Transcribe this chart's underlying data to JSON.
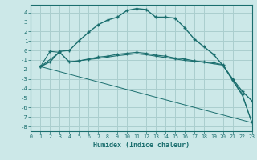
{
  "xlabel": "Humidex (Indice chaleur)",
  "ylabel": "",
  "xlim": [
    0,
    23
  ],
  "ylim": [
    -8.5,
    4.8
  ],
  "bg_color": "#cce8e8",
  "grid_color": "#aacece",
  "line_color": "#1a6e6e",
  "curve1_x": [
    1,
    2,
    3,
    4,
    5,
    6,
    7,
    8,
    9,
    10,
    11,
    12,
    13,
    14,
    15,
    16,
    17,
    18,
    19,
    20,
    21,
    22,
    23
  ],
  "curve1_y": [
    -1.7,
    -1.2,
    -0.1,
    0.0,
    1.0,
    1.9,
    2.7,
    3.2,
    3.5,
    4.2,
    4.4,
    4.3,
    3.5,
    3.5,
    3.4,
    2.4,
    1.2,
    0.4,
    -0.4,
    -1.6,
    -3.0,
    -4.3,
    -5.3
  ],
  "curve2_x": [
    1,
    2,
    3,
    4,
    5,
    6,
    7,
    8,
    9,
    10,
    11,
    12,
    13,
    14,
    15,
    16,
    17,
    18,
    19,
    20,
    21,
    22,
    23
  ],
  "curve2_y": [
    -1.7,
    -0.1,
    -0.2,
    -1.2,
    -1.1,
    -0.9,
    -0.7,
    -0.6,
    -0.4,
    -0.3,
    -0.2,
    -0.3,
    -0.5,
    -0.6,
    -0.8,
    -0.9,
    -1.1,
    -1.2,
    -1.3,
    -1.5,
    -3.1,
    -4.6,
    -7.6
  ],
  "curve3_x": [
    1,
    3,
    4,
    5,
    6,
    7,
    8,
    9,
    10,
    11,
    12,
    13,
    14,
    15,
    16,
    17,
    18,
    19,
    20,
    21,
    22,
    23
  ],
  "curve3_y": [
    -1.7,
    -0.2,
    -1.2,
    -1.1,
    -0.95,
    -0.85,
    -0.7,
    -0.55,
    -0.45,
    -0.35,
    -0.45,
    -0.6,
    -0.75,
    -0.9,
    -1.05,
    -1.15,
    -1.25,
    -1.4,
    -1.55,
    -3.2,
    -4.7,
    -7.6
  ],
  "curve4_x": [
    1,
    23
  ],
  "curve4_y": [
    -1.7,
    -7.6
  ],
  "xticks": [
    0,
    1,
    2,
    3,
    4,
    5,
    6,
    7,
    8,
    9,
    10,
    11,
    12,
    13,
    14,
    15,
    16,
    17,
    18,
    19,
    20,
    21,
    22,
    23
  ],
  "yticks": [
    -8,
    -7,
    -6,
    -5,
    -4,
    -3,
    -2,
    -1,
    0,
    1,
    2,
    3,
    4
  ]
}
